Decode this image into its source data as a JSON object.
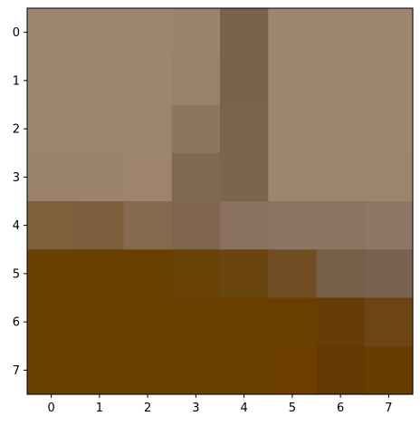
{
  "chart_data": {
    "type": "heatmap",
    "rows": [
      "0",
      "1",
      "2",
      "3",
      "4",
      "5",
      "6",
      "7"
    ],
    "columns": [
      "0",
      "1",
      "2",
      "3",
      "4",
      "5",
      "6",
      "7"
    ],
    "x_ticks": [
      "0",
      "1",
      "2",
      "3",
      "4",
      "5",
      "6",
      "7"
    ],
    "y_ticks": [
      "0",
      "1",
      "2",
      "3",
      "4",
      "5",
      "6",
      "7"
    ],
    "xlim": [
      -0.5,
      7.5
    ],
    "ylim": [
      7.5,
      -0.5
    ],
    "grid": false,
    "legend": "none",
    "cells": [
      [
        "#9e856d",
        "#9e856d",
        "#9e856d",
        "#9c836b",
        "#7b624d",
        "#9e856d",
        "#9e856d",
        "#9e856d"
      ],
      [
        "#9e856d",
        "#9e856d",
        "#9e856d",
        "#9a8169",
        "#7b624d",
        "#9e856d",
        "#9e856d",
        "#9e856d"
      ],
      [
        "#9d846c",
        "#9d846c",
        "#9d846c",
        "#8b7760",
        "#7c634e",
        "#9e856d",
        "#9e856d",
        "#9e856d"
      ],
      [
        "#9b836b",
        "#9c836b",
        "#9e846c",
        "#7f6950",
        "#7d644f",
        "#9e856d",
        "#9d846c",
        "#9d846c"
      ],
      [
        "#7f5f3c",
        "#7e5e3d",
        "#866a4f",
        "#81654c",
        "#8b7160",
        "#8d7460",
        "#8d7362",
        "#8e7565"
      ],
      [
        "#6a4000",
        "#6a4000",
        "#684000",
        "#684206",
        "#6b4510",
        "#704d22",
        "#756047",
        "#796350"
      ],
      [
        "#6a4000",
        "#6a4000",
        "#6a4000",
        "#6a3f00",
        "#6b3f00",
        "#6a3f00",
        "#683b08",
        "#6b4513"
      ],
      [
        "#6a4000",
        "#6a4000",
        "#6a4000",
        "#6a4000",
        "#6a3f00",
        "#6c3e00",
        "#623803",
        "#663e00"
      ]
    ]
  }
}
